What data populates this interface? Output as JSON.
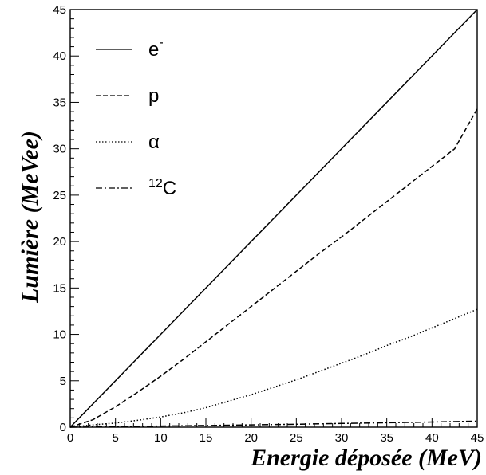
{
  "chart_data": {
    "type": "line",
    "title": "",
    "xlabel": "Energie déposée (MeV)",
    "ylabel": "Lumière (MeVee)",
    "xlim": [
      0,
      45
    ],
    "ylim": [
      0,
      45
    ],
    "xticks": [
      0,
      5,
      10,
      15,
      20,
      25,
      30,
      35,
      40,
      45
    ],
    "yticks": [
      0,
      5,
      10,
      15,
      20,
      25,
      30,
      35,
      40,
      45
    ],
    "grid": false,
    "legend_position": "top-left",
    "legend": {
      "e": {
        "base": "e",
        "sup": "-"
      },
      "p": {
        "base": "p"
      },
      "alpha": {
        "base": "α"
      },
      "c12": {
        "sup": "12",
        "base": "C"
      }
    },
    "series": [
      {
        "key": "e",
        "line_style": "solid",
        "x": [
          0,
          45
        ],
        "y": [
          0,
          45
        ]
      },
      {
        "key": "p",
        "line_style": "dashed",
        "x": [
          0,
          2.5,
          5,
          7.5,
          10,
          12.5,
          15,
          17.5,
          20,
          22.5,
          25,
          27.5,
          30,
          32.5,
          35,
          37.5,
          40,
          42.5,
          45
        ],
        "y": [
          0,
          0.8,
          2.2,
          3.8,
          5.5,
          7.3,
          9.2,
          11.1,
          13.0,
          14.9,
          16.8,
          18.7,
          20.5,
          22.4,
          24.3,
          26.2,
          28.1,
          30.0,
          34.3
        ]
      },
      {
        "key": "alpha",
        "line_style": "dotted",
        "x": [
          0,
          2.5,
          5,
          7.5,
          10,
          12.5,
          15,
          17.5,
          20,
          22.5,
          25,
          27.5,
          30,
          32.5,
          35,
          37.5,
          40,
          42.5,
          45
        ],
        "y": [
          0,
          0.25,
          0.45,
          0.75,
          1.1,
          1.55,
          2.1,
          2.8,
          3.5,
          4.3,
          5.1,
          6.0,
          6.9,
          7.8,
          8.8,
          9.7,
          10.7,
          11.7,
          12.7
        ]
      },
      {
        "key": "c12",
        "line_style": "dashdot",
        "x": [
          0,
          5,
          10,
          15,
          20,
          25,
          30,
          35,
          40,
          45
        ],
        "y": [
          0,
          0.05,
          0.12,
          0.18,
          0.25,
          0.32,
          0.4,
          0.48,
          0.56,
          0.65
        ]
      }
    ]
  }
}
